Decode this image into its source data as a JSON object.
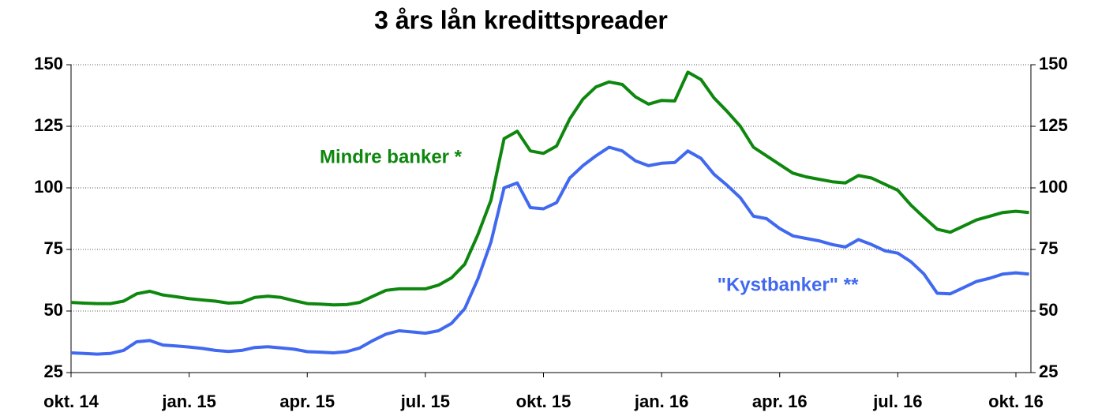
{
  "chart_data": {
    "type": "line",
    "title": "3 års lån kredittspreader",
    "categories": [
      "okt. 14",
      null,
      null,
      null,
      null,
      null,
      null,
      null,
      null,
      "jan. 15",
      null,
      null,
      null,
      null,
      null,
      null,
      null,
      null,
      "apr. 15",
      null,
      null,
      null,
      null,
      null,
      null,
      null,
      null,
      "jul. 15",
      null,
      null,
      null,
      null,
      null,
      null,
      null,
      null,
      "okt. 15",
      null,
      null,
      null,
      null,
      null,
      null,
      null,
      null,
      "jan. 16",
      null,
      null,
      null,
      null,
      null,
      null,
      null,
      null,
      "apr. 16",
      null,
      null,
      null,
      null,
      null,
      null,
      null,
      null,
      "jul. 16",
      null,
      null,
      null,
      null,
      null,
      null,
      null,
      null,
      "okt. 16",
      null
    ],
    "series": [
      {
        "name": "Mindre banker *",
        "color": "#0e870e",
        "values": [
          53.5,
          53.2,
          53,
          53,
          54,
          57,
          58,
          56.5,
          55.8,
          55,
          54.5,
          54,
          53.2,
          53.5,
          55.5,
          56,
          55.5,
          54.2,
          53,
          52.8,
          52.5,
          52.6,
          53.5,
          56,
          58.4,
          59,
          59,
          59,
          60.5,
          63.5,
          69,
          81,
          95,
          120,
          123,
          115,
          114,
          117,
          128,
          136,
          141,
          143,
          142,
          137,
          134,
          135.5,
          135.3,
          147,
          144,
          136.5,
          131,
          125,
          116.5,
          113,
          109.5,
          106,
          104.5,
          103.5,
          102.5,
          102,
          105,
          104,
          101.5,
          99,
          93,
          88,
          83.2,
          82,
          84.5,
          87,
          88.5,
          90,
          90.5,
          90
        ]
      },
      {
        "name": "\"Kystbanker\" **",
        "color": "#4169f0",
        "values": [
          33,
          32.8,
          32.5,
          32.8,
          34,
          37.5,
          38,
          36.2,
          35.8,
          35.4,
          34.8,
          34,
          33.6,
          34,
          35.2,
          35.5,
          35,
          34.5,
          33.5,
          33.3,
          33,
          33.5,
          35,
          38,
          40.6,
          42,
          41.5,
          41,
          42,
          45,
          51,
          63,
          78,
          100,
          102,
          92,
          91.5,
          94,
          104,
          109,
          113,
          116.5,
          115,
          111,
          109,
          110,
          110.3,
          115,
          112,
          105.5,
          101,
          96,
          88.5,
          87.5,
          83.5,
          80.5,
          79.5,
          78.5,
          77,
          76,
          79,
          77,
          74.5,
          73.5,
          70,
          65,
          57.2,
          57,
          59.5,
          62,
          63.3,
          65,
          65.5,
          65
        ]
      }
    ],
    "ylim": [
      25,
      150
    ],
    "yticks": [
      25,
      50,
      75,
      100,
      125,
      150
    ],
    "y2lim": [
      25,
      150
    ],
    "y2ticks": [
      25,
      50,
      75,
      100,
      125,
      150
    ],
    "grid": true
  }
}
